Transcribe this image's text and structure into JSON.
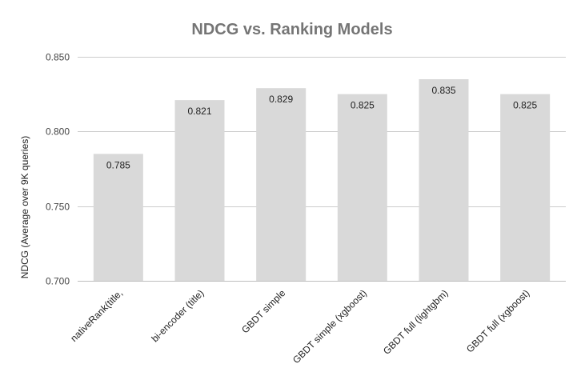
{
  "chart_data": {
    "type": "bar",
    "title": "NDCG vs. Ranking Models",
    "xlabel": "",
    "ylabel": "NDCG (Average over 9K queries)",
    "ylim": [
      0.7,
      0.85
    ],
    "yticks": [
      "0.700",
      "0.750",
      "0.800",
      "0.850"
    ],
    "grid": true,
    "legend": "none",
    "bar_color": "#d9d9d9",
    "categories": [
      "nativeRank(title,",
      "bi-encoder (title)",
      "GBDT simple",
      "GBDT simple (xgboost)",
      "GBDT full (lightgbm)",
      "GBDT full (xgboost)"
    ],
    "values": [
      0.785,
      0.821,
      0.829,
      0.825,
      0.835,
      0.825
    ],
    "data_labels": [
      "0.785",
      "0.821",
      "0.829",
      "0.825",
      "0.835",
      "0.825"
    ]
  }
}
